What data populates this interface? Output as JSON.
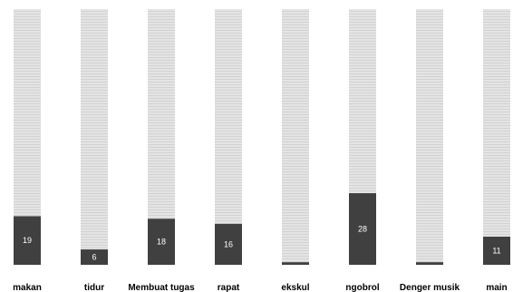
{
  "chart_data": {
    "type": "bar",
    "categories": [
      "makan",
      "tidur",
      "Membuat tugas",
      "rapat",
      "ekskul",
      "ngobrol",
      "Denger musik",
      "main"
    ],
    "values": [
      19,
      6,
      18,
      16,
      1,
      28,
      1,
      11
    ],
    "value_labels": [
      "19",
      "6",
      "18",
      "16",
      "",
      "28",
      "",
      "11"
    ],
    "ylim": [
      0,
      100
    ],
    "colors": {
      "bar": "#404040",
      "background_column": "#e4e4e4",
      "stripe": "#d2d2d2",
      "value_text": "#ffffff",
      "category_text": "#000000"
    }
  }
}
